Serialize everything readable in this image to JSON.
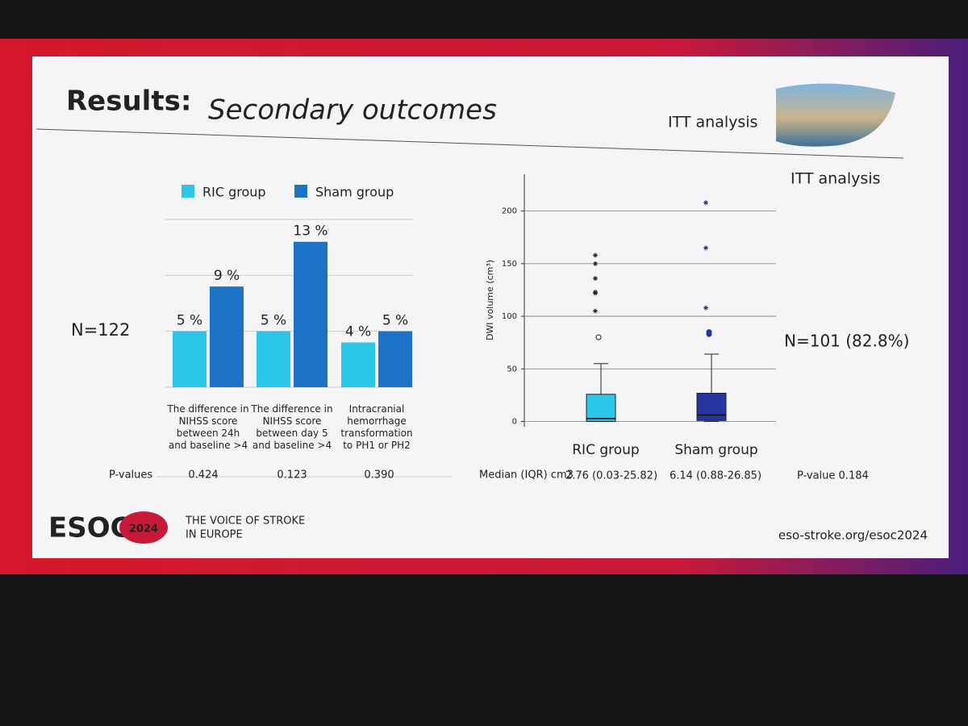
{
  "slide": {
    "title_lead": "Results:",
    "title_rest": "Secondary outcomes",
    "badge": "ITT analysis",
    "left_n": "N=122",
    "right_n": "N=101 (82.8%)",
    "p_values": {
      "label": "P-values",
      "values": [
        "0.424",
        "0.123",
        "0.390"
      ]
    },
    "summary": {
      "label": "Median (IQR) cm3",
      "p_value": "P-value 0.184"
    },
    "footer": {
      "logo": "ESOC",
      "year": "2024",
      "tagline": [
        "THE VOICE OF STROKE",
        "IN EUROPE"
      ],
      "url": "eso-stroke.org/esoc2024"
    }
  },
  "chart_data": [
    {
      "type": "bar",
      "categories": [
        "The difference in NIHSS score between 24h and baseline >4",
        "The difference in NIHSS score between day 5 and baseline >4",
        "Intracranial hemorrhage transformation to PH1 or PH2"
      ],
      "series": [
        {
          "name": "RIC group",
          "color": "#2cc6e8",
          "values": [
            5,
            5,
            4
          ],
          "value_labels": [
            "5 %",
            "5 %",
            "4 %"
          ]
        },
        {
          "name": "Sham group",
          "color": "#1c72c4",
          "values": [
            9,
            13,
            5
          ],
          "value_labels": [
            "9 %",
            "13 %",
            "5 %"
          ]
        }
      ],
      "ylim": [
        0,
        15
      ],
      "yticks": [
        0,
        5,
        10,
        15
      ],
      "grid": true
    },
    {
      "type": "box",
      "title": "ITT analysis",
      "y_label": "DWI volume (cm³)",
      "categories": [
        "RIC group",
        "Sham group"
      ],
      "ylim": [
        -5,
        235
      ],
      "yticks": [
        0,
        50,
        100,
        150,
        200
      ],
      "grid": true,
      "boxes": [
        {
          "color": "#2cc6e8",
          "whisker_low": 0,
          "q1": 0.03,
          "median": 2.76,
          "q3": 25.82,
          "whisker_high": 55,
          "outliers": [
            80
          ],
          "extremes": [
            105,
            122,
            123,
            136,
            150,
            158
          ],
          "summary_label": "2.76 (0.03-25.82)"
        },
        {
          "color": "#26369e",
          "whisker_low": 0,
          "q1": 0.88,
          "median": 6.14,
          "q3": 26.85,
          "whisker_high": 64,
          "outliers": [
            83,
            85
          ],
          "extremes": [
            108,
            165,
            208
          ],
          "summary_label": "6.14 (0.88-26.85)"
        }
      ]
    }
  ]
}
